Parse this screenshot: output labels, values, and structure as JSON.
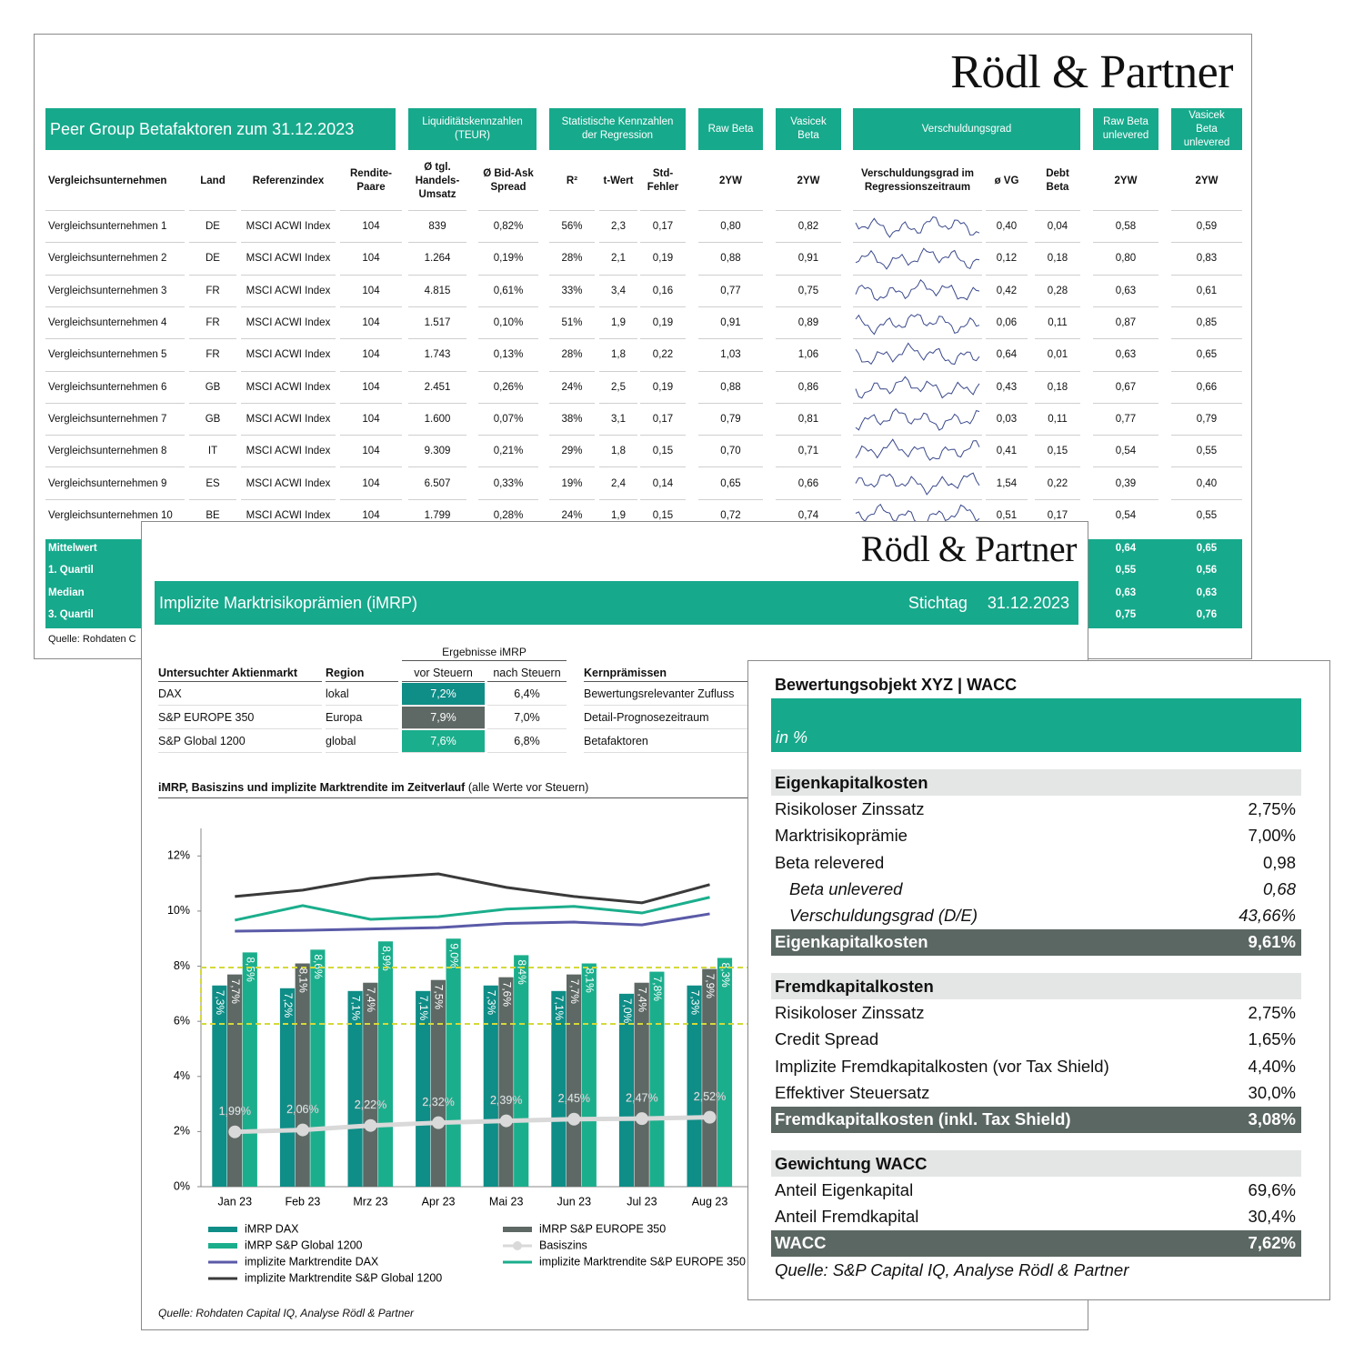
{
  "peer_group": {
    "logo": "Rödl & Partner",
    "title": "Peer Group Betafaktoren zum 31.12.2023",
    "group_headers": [
      "Liquiditätskennzahlen (TEUR)",
      "Statistische Kennzahlen der Regression",
      "Raw Beta",
      "Vasicek Beta",
      "Verschuldungsgrad",
      "Raw Beta unlevered",
      "Vasicek Beta unlevered"
    ],
    "columns": [
      "Vergleichsunternehmen",
      "Land",
      "Referenzindex",
      "Rendite-Paare",
      "Ø tgl. Handels-Umsatz",
      "Ø Bid-Ask Spread",
      "R²",
      "t-Wert",
      "Std-Fehler",
      "2YW",
      "2YW",
      "Verschuldungsgrad im Regressionszeitraum",
      "ø VG",
      "Debt Beta",
      "2YW",
      "2YW"
    ],
    "rows": [
      [
        "Vergleichsunternehmen 1",
        "DE",
        "MSCI ACWI Index",
        "104",
        "839",
        "0,82%",
        "56%",
        "2,3",
        "0,17",
        "0,80",
        "0,82",
        "0,40",
        "0,04",
        "0,58",
        "0,59"
      ],
      [
        "Vergleichsunternehmen 2",
        "DE",
        "MSCI ACWI Index",
        "104",
        "1.264",
        "0,19%",
        "28%",
        "2,1",
        "0,19",
        "0,88",
        "0,91",
        "0,12",
        "0,18",
        "0,80",
        "0,83"
      ],
      [
        "Vergleichsunternehmen 3",
        "FR",
        "MSCI ACWI Index",
        "104",
        "4.815",
        "0,61%",
        "33%",
        "3,4",
        "0,16",
        "0,77",
        "0,75",
        "0,42",
        "0,28",
        "0,63",
        "0,61"
      ],
      [
        "Vergleichsunternehmen 4",
        "FR",
        "MSCI ACWI Index",
        "104",
        "1.517",
        "0,10%",
        "51%",
        "1,9",
        "0,19",
        "0,91",
        "0,89",
        "0,06",
        "0,11",
        "0,87",
        "0,85"
      ],
      [
        "Vergleichsunternehmen 5",
        "FR",
        "MSCI ACWI Index",
        "104",
        "1.743",
        "0,13%",
        "28%",
        "1,8",
        "0,22",
        "1,03",
        "1,06",
        "0,64",
        "0,01",
        "0,63",
        "0,65"
      ],
      [
        "Vergleichsunternehmen 6",
        "GB",
        "MSCI ACWI Index",
        "104",
        "2.451",
        "0,26%",
        "24%",
        "2,5",
        "0,19",
        "0,88",
        "0,86",
        "0,43",
        "0,18",
        "0,67",
        "0,66"
      ],
      [
        "Vergleichsunternehmen 7",
        "GB",
        "MSCI ACWI Index",
        "104",
        "1.600",
        "0,07%",
        "38%",
        "3,1",
        "0,17",
        "0,79",
        "0,81",
        "0,03",
        "0,11",
        "0,77",
        "0,79"
      ],
      [
        "Vergleichsunternehmen 8",
        "IT",
        "MSCI ACWI Index",
        "104",
        "9.309",
        "0,21%",
        "29%",
        "1,8",
        "0,15",
        "0,70",
        "0,71",
        "0,41",
        "0,15",
        "0,54",
        "0,55"
      ],
      [
        "Vergleichsunternehmen 9",
        "ES",
        "MSCI ACWI Index",
        "104",
        "6.507",
        "0,33%",
        "19%",
        "2,4",
        "0,14",
        "0,65",
        "0,66",
        "1,54",
        "0,22",
        "0,39",
        "0,40"
      ],
      [
        "Vergleichsunternehmen 10",
        "BE",
        "MSCI ACWI Index",
        "104",
        "1.799",
        "0,28%",
        "24%",
        "1,9",
        "0,15",
        "0,72",
        "0,74",
        "0,51",
        "0,17",
        "0,54",
        "0,55"
      ]
    ],
    "summary": [
      {
        "label": "Mittelwert",
        "values": [
          "0,64",
          "0,65"
        ]
      },
      {
        "label": "1. Quartil",
        "values": [
          "0,55",
          "0,56"
        ]
      },
      {
        "label": "Median",
        "values": [
          "0,63",
          "0,63"
        ]
      },
      {
        "label": "3. Quartil",
        "values": [
          "0,75",
          "0,76"
        ]
      }
    ],
    "source": "Quelle: Rohdaten C"
  },
  "imrp": {
    "logo": "Rödl & Partner",
    "title": "Implizite Marktrisikoprämien (iMRP)",
    "date_label": "Stichtag",
    "date": "31.12.2023",
    "table": {
      "group_header": "Ergebnisse iMRP",
      "columns": [
        "Untersuchter Aktienmarkt",
        "Region",
        "vor Steuern",
        "nach Steuern",
        "Kernprämissen"
      ],
      "rows": [
        [
          "DAX",
          "lokal",
          "7,2%",
          "6,4%",
          "Bewertungsrelevanter Zufluss"
        ],
        [
          "S&P EUROPE 350",
          "Europa",
          "7,9%",
          "7,0%",
          "Detail-Prognosezeitraum"
        ],
        [
          "S&P Global 1200",
          "global",
          "7,6%",
          "6,8%",
          "Betafaktoren"
        ]
      ],
      "highlight_colors": [
        "#0f8d87",
        "#5e6864",
        "#1bae8c"
      ]
    },
    "source": "Quelle: Rohdaten Capital IQ, Analyse Rödl & Partner"
  },
  "chart_data": {
    "type": "bar_line",
    "title": "iMRP, Basiszins und implizite Marktrendite im Zeitverlauf",
    "subtitle": "(alle Werte vor Steuern)",
    "categories": [
      "Jan 23",
      "Feb 23",
      "Mrz 23",
      "Apr 23",
      "Mai 23",
      "Jun 23",
      "Jul 23",
      "Aug 23"
    ],
    "ylim": [
      0,
      13
    ],
    "yticks": [
      {
        "value": 0,
        "label": "0%"
      },
      {
        "value": 2,
        "label": "2%"
      },
      {
        "value": 4,
        "label": "4%"
      },
      {
        "value": 6,
        "label": "6%"
      },
      {
        "value": 8,
        "label": "8%"
      },
      {
        "value": 10,
        "label": "10%"
      },
      {
        "value": 12,
        "label": "12%"
      }
    ],
    "series": [
      {
        "name": "iMRP DAX",
        "type": "bar",
        "color": "#0f8d87",
        "values": [
          7.3,
          7.2,
          7.1,
          7.1,
          7.3,
          7.1,
          7.0,
          7.3
        ],
        "value_labels": [
          "7,3%",
          "7,2%",
          "7,1%",
          "7,1%",
          "7,3%",
          "7,1%",
          "7,0%",
          "7,3%"
        ]
      },
      {
        "name": "iMRP S&P EUROPE 350",
        "type": "bar",
        "color": "#5e6864",
        "values": [
          7.7,
          8.1,
          7.4,
          7.5,
          7.6,
          7.7,
          7.4,
          7.9
        ],
        "value_labels": [
          "7,7%",
          "8,1%",
          "7,4%",
          "7,5%",
          "7,6%",
          "7,7%",
          "7,4%",
          "7,9%"
        ]
      },
      {
        "name": "iMRP S&P Global 1200",
        "type": "bar",
        "color": "#1bae8c",
        "values": [
          8.5,
          8.6,
          8.9,
          9.0,
          8.4,
          8.1,
          7.8,
          8.3
        ],
        "value_labels": [
          "8,5%",
          "8,6%",
          "8,9%",
          "9,0%",
          "8,4%",
          "8,1%",
          "7,8%",
          "8,3%"
        ]
      },
      {
        "name": "Basiszins",
        "type": "line",
        "markers": true,
        "color": "#d9d9d9",
        "values": [
          1.99,
          2.06,
          2.22,
          2.32,
          2.39,
          2.45,
          2.47,
          2.52
        ],
        "value_labels": [
          "1,99%",
          "2,06%",
          "2,22%",
          "2,32%",
          "2,39%",
          "2,45%",
          "2,47%",
          "2,52%"
        ]
      },
      {
        "name": "implizite Marktrendite DAX",
        "type": "line",
        "color": "#5a5aa8",
        "values": [
          9.27,
          9.3,
          9.35,
          9.4,
          9.55,
          9.6,
          9.5,
          9.9
        ]
      },
      {
        "name": "implizite Marktrendite S&P EUROPE 350",
        "type": "line",
        "color": "#1bae8c",
        "values": [
          9.67,
          10.2,
          9.7,
          9.8,
          10.07,
          10.17,
          9.93,
          10.5
        ]
      },
      {
        "name": "implizite Marktrendite S&P Global 1200",
        "type": "line",
        "color": "#3a3a3a",
        "values": [
          10.53,
          10.76,
          11.19,
          11.35,
          10.86,
          10.53,
          10.3,
          10.96
        ]
      }
    ]
  },
  "wacc": {
    "title": "Bewertungsobjekt XYZ | WACC",
    "unit": "in %",
    "sections": [
      {
        "header": "Eigenkapitalkosten",
        "rows": [
          {
            "label": "Risikoloser Zinssatz",
            "value": "2,75%"
          },
          {
            "label": "Marktrisikoprämie",
            "value": "7,00%"
          },
          {
            "label": "Beta relevered",
            "value": "0,98"
          },
          {
            "label": "Beta unlevered",
            "value": "0,68",
            "italic": true
          },
          {
            "label": "Verschuldungsgrad (D/E)",
            "value": "43,66%",
            "italic": true
          }
        ],
        "total": {
          "label": "Eigenkapitalkosten",
          "value": "9,61%"
        }
      },
      {
        "header": "Fremdkapitalkosten",
        "rows": [
          {
            "label": "Risikoloser Zinssatz",
            "value": "2,75%"
          },
          {
            "label": "Credit Spread",
            "value": "1,65%"
          },
          {
            "label": "Implizite Fremdkapitalkosten (vor Tax Shield)",
            "value": "4,40%"
          },
          {
            "label": "Effektiver Steuersatz",
            "value": "30,0%"
          }
        ],
        "total": {
          "label": "Fremdkapitalkosten (inkl. Tax Shield)",
          "value": "3,08%"
        }
      },
      {
        "header": "Gewichtung WACC",
        "rows": [
          {
            "label": "Anteil Eigenkapital",
            "value": "69,6%"
          },
          {
            "label": "Anteil Fremdkapital",
            "value": "30,4%"
          }
        ],
        "total": {
          "label": "WACC",
          "value": "7,62%"
        }
      }
    ],
    "source": "Quelle: S&P Capital IQ, Analyse Rödl & Partner"
  }
}
